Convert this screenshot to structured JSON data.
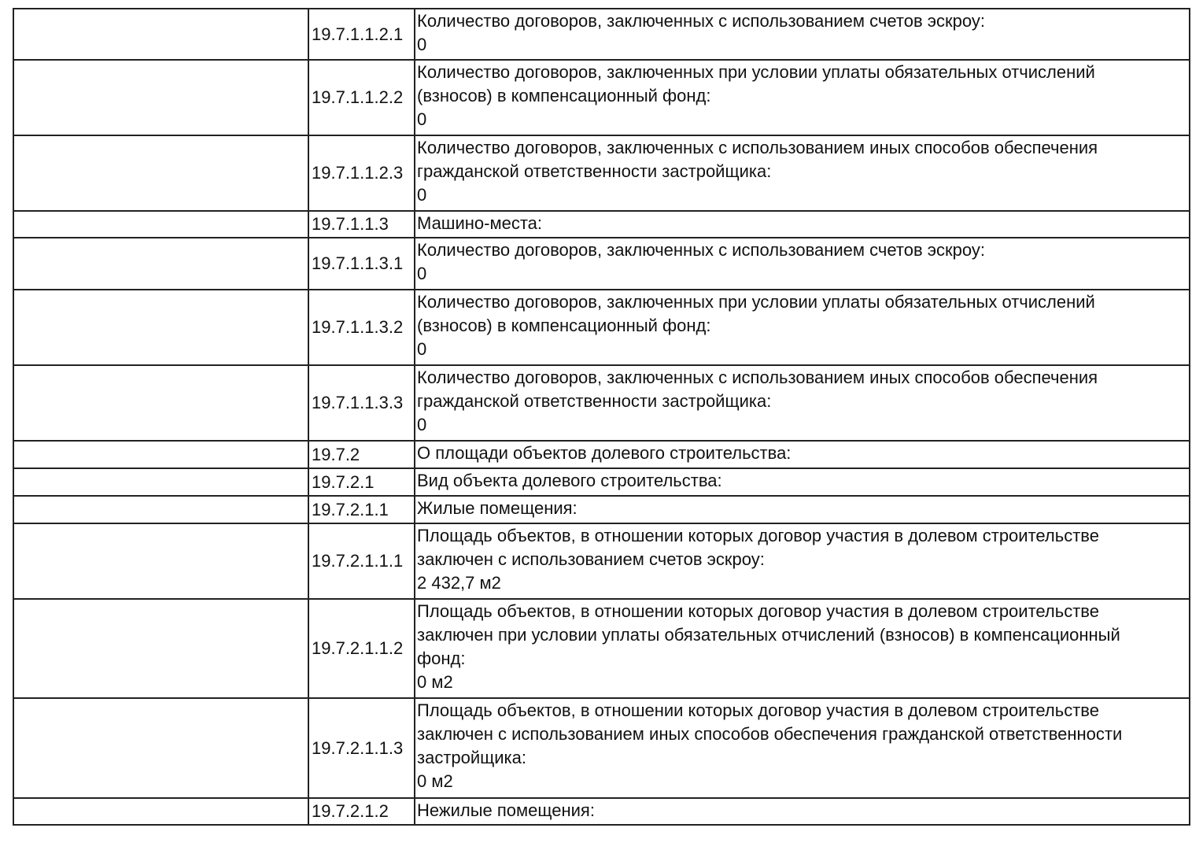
{
  "rows": [
    {
      "code": "19.7.1.1.2.1",
      "lines": [
        "Количество договоров, заключенных с использованием счетов эскроу:"
      ],
      "value": "0"
    },
    {
      "code": "19.7.1.1.2.2",
      "lines": [
        "Количество договоров, заключенных при условии уплаты обязательных отчислений",
        "(взносов) в компенсационный фонд:"
      ],
      "value": "0"
    },
    {
      "code": "19.7.1.1.2.3",
      "lines": [
        "Количество договоров, заключенных с использованием иных способов обеспечения",
        "гражданской ответственности застройщика:"
      ],
      "value": "0"
    },
    {
      "code": "19.7.1.1.3",
      "lines": [
        "Машино-места:"
      ]
    },
    {
      "code": "19.7.1.1.3.1",
      "lines": [
        "Количество договоров, заключенных с использованием счетов эскроу:"
      ],
      "value": "0"
    },
    {
      "code": "19.7.1.1.3.2",
      "lines": [
        "Количество договоров, заключенных при условии уплаты обязательных отчислений",
        "(взносов) в компенсационный фонд:"
      ],
      "value": "0"
    },
    {
      "code": "19.7.1.1.3.3",
      "lines": [
        "Количество договоров, заключенных с использованием иных способов обеспечения",
        "гражданской ответственности застройщика:"
      ],
      "value": "0"
    },
    {
      "code": "19.7.2",
      "lines": [
        "О площади объектов долевого строительства:"
      ]
    },
    {
      "code": "19.7.2.1",
      "lines": [
        "Вид объекта долевого строительства:"
      ]
    },
    {
      "code": "19.7.2.1.1",
      "lines": [
        "Жилые помещения:"
      ]
    },
    {
      "code": "19.7.2.1.1.1",
      "lines": [
        "Площадь объектов, в отношении которых договор участия в долевом строительстве",
        "заключен с использованием счетов эскроу:"
      ],
      "value": "2 432,7 м2"
    },
    {
      "code": "19.7.2.1.1.2",
      "lines": [
        "Площадь объектов, в отношении которых договор участия в долевом строительстве",
        "заключен при условии уплаты обязательных отчислений (взносов) в компенсационный",
        "фонд:"
      ],
      "value": "0 м2"
    },
    {
      "code": "19.7.2.1.1.3",
      "lines": [
        "Площадь объектов, в отношении которых договор участия в долевом строительстве",
        "заключен с использованием иных способов обеспечения гражданской ответственности",
        "застройщика:"
      ],
      "value": "0 м2"
    },
    {
      "code": "19.7.2.1.2",
      "lines": [
        "Нежилые помещения:"
      ]
    }
  ]
}
